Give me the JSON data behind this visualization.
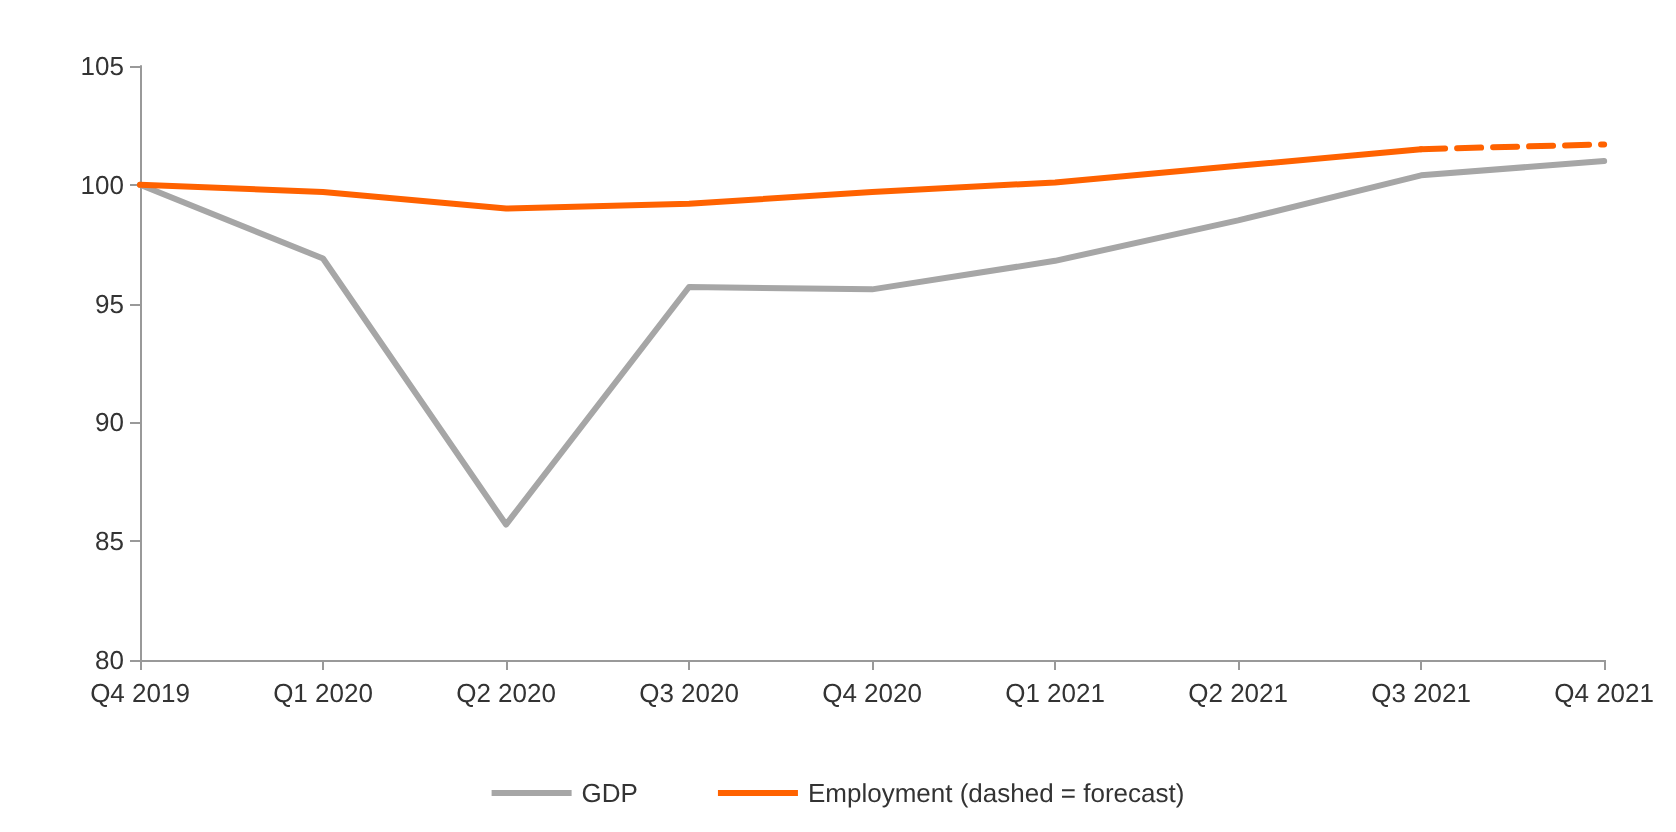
{
  "chart_data": {
    "type": "line",
    "categories": [
      "Q4 2019",
      "Q1 2020",
      "Q2 2020",
      "Q3 2020",
      "Q4 2020",
      "Q1 2021",
      "Q2 2021",
      "Q3 2021",
      "Q4 2021"
    ],
    "series": [
      {
        "name": "GDP",
        "color": "#a6a6a6",
        "line_style": "solid",
        "values": [
          100,
          96.9,
          85.7,
          95.7,
          95.6,
          96.8,
          98.5,
          100.4,
          101.0
        ]
      },
      {
        "name": "Employment (dashed = forecast)",
        "color": "#ff6200",
        "line_style": "solid",
        "values": [
          100,
          99.7,
          99.0,
          99.2,
          99.7,
          100.1,
          100.8,
          101.5,
          null
        ]
      },
      {
        "color": "#ff6200",
        "line_style": "dashed",
        "values": [
          null,
          null,
          null,
          null,
          null,
          null,
          null,
          101.5,
          101.7
        ]
      }
    ],
    "ylim": [
      80,
      105
    ],
    "yticks": [
      80,
      85,
      90,
      95,
      100,
      105
    ],
    "grid": false,
    "legend": "bottom",
    "marker": "none"
  }
}
